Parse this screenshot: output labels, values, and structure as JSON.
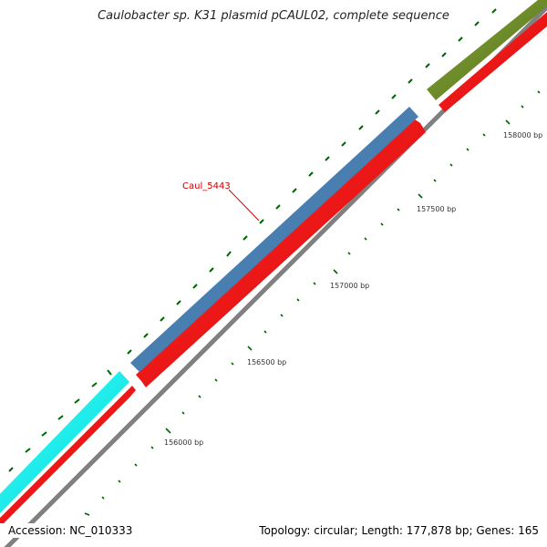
{
  "title": "Caulobacter sp. K31 plasmid pCAUL02, complete sequence",
  "accession_label": "Accession: NC_010333",
  "summary_label": "Topology: circular; Length: 177,878 bp; Genes: 165",
  "gene_label": "Caul_5443",
  "tick_labels": [
    "156000 bp",
    "156500 bp",
    "157000 bp",
    "157500 bp",
    "158000 bp"
  ],
  "colors": {
    "outer_green": "#6b8e23",
    "outer_blue": "#4682b4",
    "outer_cyan": "#00ffff",
    "cds": "#ff0000",
    "backbone": "#808080",
    "ticks": "#006400",
    "gene_label": "#cc0000"
  }
}
